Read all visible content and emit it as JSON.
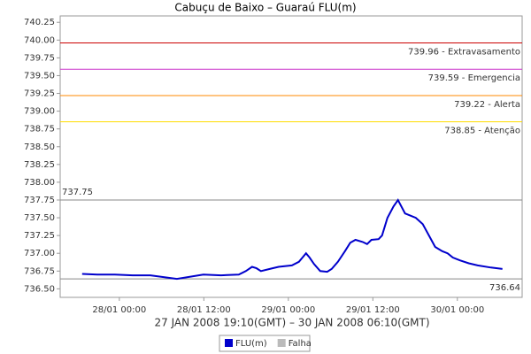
{
  "chart_data": {
    "type": "line",
    "title": "Cabuçu de Baixo – Guaraú FLU(m)",
    "x_label": "27 JAN 2008 19:10(GMT) – 30 JAN 2008 06:10(GMT)",
    "xlim": [
      -8.4,
      57.2
    ],
    "xticks": [
      {
        "value": 0,
        "label": "28/01 00:00"
      },
      {
        "value": 12,
        "label": "28/01 12:00"
      },
      {
        "value": 24,
        "label": "29/01 00:00"
      },
      {
        "value": 36,
        "label": "29/01 12:00"
      },
      {
        "value": 48,
        "label": "30/01 00:00"
      }
    ],
    "ylim": [
      736.38,
      740.34
    ],
    "yticks": [
      {
        "value": 736.5,
        "label": "736.50"
      },
      736.75,
      {
        "value": 737,
        "label": "737.00"
      },
      737.25,
      {
        "value": 737.5,
        "label": "737.50"
      },
      737.75,
      {
        "value": 738,
        "label": "738.00"
      },
      738.25,
      {
        "value": 738.5,
        "label": "738.50"
      },
      738.75,
      {
        "value": 739,
        "label": "739.00"
      },
      739.25,
      {
        "value": 739.5,
        "label": "739.50"
      },
      739.75,
      {
        "value": 740,
        "label": "740.00"
      },
      740.25
    ],
    "series": [
      {
        "name": "FLU(m)",
        "color": "#0000cc",
        "x": [
          -5.28,
          -3.14,
          -0.63,
          1.88,
          4.4,
          8.17,
          11.93,
          14.45,
          16.96,
          17.96,
          18.84,
          19.47,
          20.1,
          21.36,
          22.61,
          24.5,
          25.5,
          26.01,
          26.51,
          27.01,
          27.64,
          28.52,
          29.52,
          30.15,
          31.03,
          32.04,
          32.79,
          33.54,
          34.55,
          35.18,
          35.8,
          36.81,
          37.31,
          38.07,
          38.94,
          39.57,
          40.58,
          42.09,
          43.09,
          43.97,
          44.85,
          45.85,
          46.61,
          47.36,
          48.37,
          49.62,
          50.88,
          52.76,
          54.4
        ],
        "values": [
          736.71,
          736.7,
          736.7,
          736.69,
          736.69,
          736.64,
          736.7,
          736.69,
          736.7,
          736.75,
          736.81,
          736.79,
          736.75,
          736.78,
          736.81,
          736.83,
          736.88,
          736.94,
          737.0,
          736.94,
          736.85,
          736.75,
          736.74,
          736.78,
          736.88,
          737.03,
          737.15,
          737.19,
          737.16,
          737.13,
          737.19,
          737.2,
          737.25,
          737.5,
          737.66,
          737.75,
          737.56,
          737.5,
          737.41,
          737.25,
          737.09,
          737.03,
          737.0,
          736.94,
          736.9,
          736.86,
          736.83,
          736.8,
          736.78
        ]
      },
      {
        "name": "Falha",
        "color": "#bbbbbb",
        "x": [],
        "values": []
      }
    ],
    "reference_lines": [
      {
        "value": 739.96,
        "label": "739.96 - Extravasamento",
        "color": "#cc0000",
        "label_side": "right"
      },
      {
        "value": 739.59,
        "label": "739.59 - Emergencia",
        "color": "#cc33cc",
        "label_side": "right"
      },
      {
        "value": 739.22,
        "label": "739.22 - Alerta",
        "color": "#ff8800",
        "label_side": "right"
      },
      {
        "value": 738.85,
        "label": "738.85 - Atenção",
        "color": "#ffdd00",
        "label_side": "right"
      },
      {
        "value": 737.75,
        "label": "737.75",
        "color": "#888888",
        "label_side": "left"
      },
      {
        "value": 736.64,
        "label": "736.64",
        "color": "#888888",
        "label_side": "right"
      }
    ]
  }
}
